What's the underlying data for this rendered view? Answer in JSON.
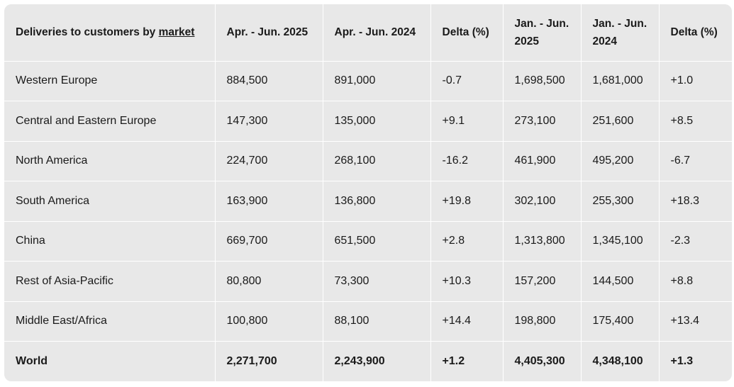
{
  "table": {
    "headers": {
      "market_prefix": "Deliveries to customers by ",
      "market_link": "market",
      "q2_2025": "Apr. - Jun. 2025",
      "q2_2024": "Apr. - Jun. 2024",
      "delta_q2": "Delta (%)",
      "h1_2025_line1": "Jan. - Jun.",
      "h1_2025_line2": "2025",
      "h1_2024_line1": "Jan. - Jun.",
      "h1_2024_line2": "2024",
      "delta_h1": "Delta (%)"
    },
    "rows": [
      [
        "Western Europe",
        "884,500",
        "891,000",
        "-0.7",
        "1,698,500",
        "1,681,000",
        "+1.0"
      ],
      [
        "Central and Eastern Europe",
        "147,300",
        "135,000",
        "+9.1",
        "273,100",
        "251,600",
        "+8.5"
      ],
      [
        "North America",
        "224,700",
        "268,100",
        "-16.2",
        "461,900",
        "495,200",
        "-6.7"
      ],
      [
        "South America",
        "163,900",
        "136,800",
        "+19.8",
        "302,100",
        "255,300",
        "+18.3"
      ],
      [
        "China",
        "669,700",
        "651,500",
        "+2.8",
        "1,313,800",
        "1,345,100",
        "-2.3"
      ],
      [
        "Rest of Asia-Pacific",
        "80,800",
        "73,300",
        "+10.3",
        "157,200",
        "144,500",
        "+8.8"
      ],
      [
        "Middle East/Africa",
        "100,800",
        "88,100",
        "+14.4",
        "198,800",
        "175,400",
        "+13.4"
      ]
    ],
    "total": [
      "World",
      "2,271,700",
      "2,243,900",
      "+1.2",
      "4,405,300",
      "4,348,100",
      "+1.3"
    ]
  }
}
